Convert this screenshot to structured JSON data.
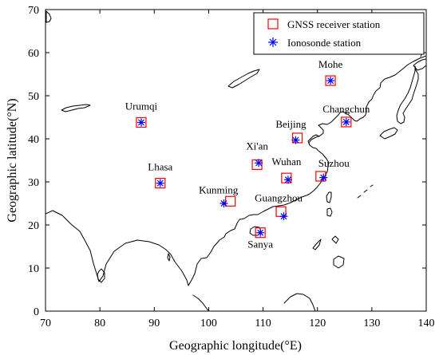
{
  "map": {
    "xlabel": "Geographic longitude(°E)",
    "ylabel": "Geographic latitude(°N)",
    "xlim": [
      70,
      140
    ],
    "ylim": [
      0,
      70
    ],
    "x_ticks": [
      "70",
      "80",
      "90",
      "100",
      "110",
      "120",
      "130",
      "140"
    ],
    "y_ticks": [
      "0",
      "10",
      "20",
      "30",
      "40",
      "50",
      "60",
      "70"
    ],
    "x_tick_values": [
      70,
      80,
      90,
      100,
      110,
      120,
      130,
      140
    ],
    "y_tick_values": [
      0,
      10,
      20,
      30,
      40,
      50,
      60,
      70
    ],
    "grid": false,
    "legend_position": "top-right",
    "colors": {
      "gnss": "#ff0000",
      "ionosonde": "#0000ff",
      "coastline": "#000000"
    }
  },
  "legend": {
    "gnss_label": "GNSS receiver station",
    "ionosonde_label": "Ionosonde station",
    "gnss_marker": "red-square-marker",
    "ionosonde_marker": "blue-asterisk-marker"
  },
  "chart_data": {
    "type": "scatter",
    "xlim": [
      70,
      140
    ],
    "ylim": [
      0,
      70
    ],
    "xlabel": "Geographic longitude(°E)",
    "ylabel": "Geographic latitude(°N)",
    "series": [
      {
        "name": "GNSS receiver station",
        "marker": "square",
        "color": "#ff0000",
        "points": [
          {
            "label": "Mohe",
            "lon": 122.4,
            "lat": 53.5
          },
          {
            "label": "Urumqi",
            "lon": 87.6,
            "lat": 43.8
          },
          {
            "label": "Changchun",
            "lon": 125.3,
            "lat": 43.9
          },
          {
            "label": "Beijing",
            "lon": 116.3,
            "lat": 40.2
          },
          {
            "label": "Xi'an",
            "lon": 108.9,
            "lat": 34.0
          },
          {
            "label": "Suzhou",
            "lon": 120.6,
            "lat": 31.3
          },
          {
            "label": "Wuhan",
            "lon": 114.3,
            "lat": 30.9
          },
          {
            "label": "Lhasa",
            "lon": 91.1,
            "lat": 29.7
          },
          {
            "label": "Kunming",
            "lon": 104.0,
            "lat": 25.5
          },
          {
            "label": "Guangzhou",
            "lon": 113.3,
            "lat": 23.1
          },
          {
            "label": "Sanya",
            "lon": 109.5,
            "lat": 18.2
          }
        ]
      },
      {
        "name": "Ionosonde station",
        "marker": "asterisk",
        "color": "#0000ff",
        "points": [
          {
            "label": "Mohe",
            "lon": 122.4,
            "lat": 53.5
          },
          {
            "label": "Urumqi",
            "lon": 87.6,
            "lat": 43.8
          },
          {
            "label": "Changchun",
            "lon": 125.3,
            "lat": 43.9
          },
          {
            "label": "Beijing",
            "lon": 116.0,
            "lat": 39.7
          },
          {
            "label": "Xi'an",
            "lon": 109.2,
            "lat": 34.4
          },
          {
            "label": "Suzhou",
            "lon": 121.1,
            "lat": 31.0
          },
          {
            "label": "Wuhan",
            "lon": 114.6,
            "lat": 30.5
          },
          {
            "label": "Lhasa",
            "lon": 91.1,
            "lat": 29.7
          },
          {
            "label": "Kunming",
            "lon": 102.8,
            "lat": 25.0
          },
          {
            "label": "Guangzhou",
            "lon": 113.8,
            "lat": 22.0
          },
          {
            "label": "Sanya",
            "lon": 109.5,
            "lat": 18.2
          }
        ]
      }
    ]
  }
}
